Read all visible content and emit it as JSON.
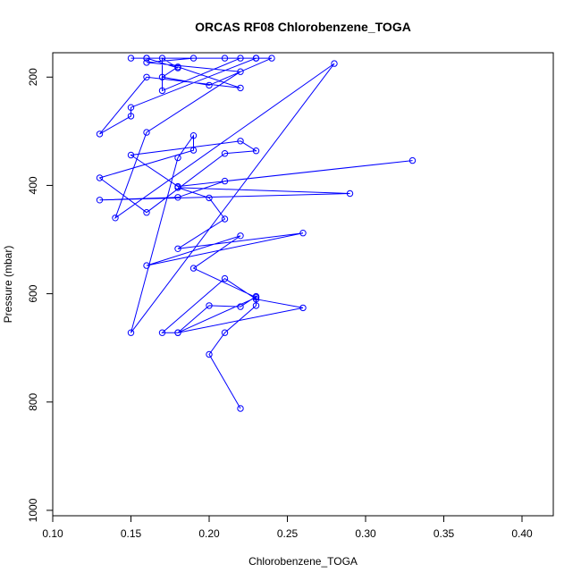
{
  "chart_data": {
    "type": "line",
    "title": "ORCAS RF08 Chlorobenzene_TOGA",
    "xlabel": "Chlorobenzene_TOGA",
    "ylabel": "Pressure (mbar)",
    "xlim": [
      0.1,
      0.42
    ],
    "ylim": [
      1010,
      155
    ],
    "y_reversed": true,
    "x_ticks": [
      "0.10",
      "0.15",
      "0.20",
      "0.25",
      "0.30",
      "0.35",
      "0.40"
    ],
    "y_ticks": [
      "200",
      "400",
      "600",
      "800",
      "1000"
    ],
    "grid": false,
    "markers": "open-circle",
    "color": "#0000ff",
    "series": [
      {
        "x": [
          0.22,
          0.2,
          0.21,
          0.23,
          0.23,
          0.22,
          0.2,
          0.18,
          0.17,
          0.21,
          0.23,
          0.26,
          0.18,
          0.23,
          0.19,
          0.22,
          0.16,
          0.26,
          0.18,
          0.21,
          0.2,
          0.18,
          0.29,
          0.13,
          0.18,
          0.21,
          0.33,
          0.18,
          0.15,
          0.22,
          0.23,
          0.21,
          0.16,
          0.13,
          0.19,
          0.19,
          0.18,
          0.15,
          0.28,
          0.14,
          0.16,
          0.22,
          0.16,
          0.19,
          0.23,
          0.15,
          0.15,
          0.13,
          0.16,
          0.22,
          0.18,
          0.17,
          0.2,
          0.24,
          0.22,
          0.17,
          0.17,
          0.18,
          0.16,
          0.23,
          0.15,
          0.21,
          0.16
        ],
        "y": [
          812,
          712,
          672,
          622,
          605,
          624,
          622,
          672,
          672,
          572,
          610,
          626,
          672,
          607,
          553,
          493,
          548,
          488,
          517,
          462,
          423,
          404,
          415,
          427,
          422,
          392,
          354,
          402,
          344,
          318,
          336,
          341,
          450,
          386,
          335,
          308,
          349,
          672,
          175,
          460,
          302,
          190,
          173,
          165,
          165,
          256,
          272,
          305,
          200,
          220,
          181,
          200,
          215,
          165,
          165,
          225,
          165,
          183,
          165,
          165,
          165,
          165,
          165
        ]
      }
    ]
  }
}
